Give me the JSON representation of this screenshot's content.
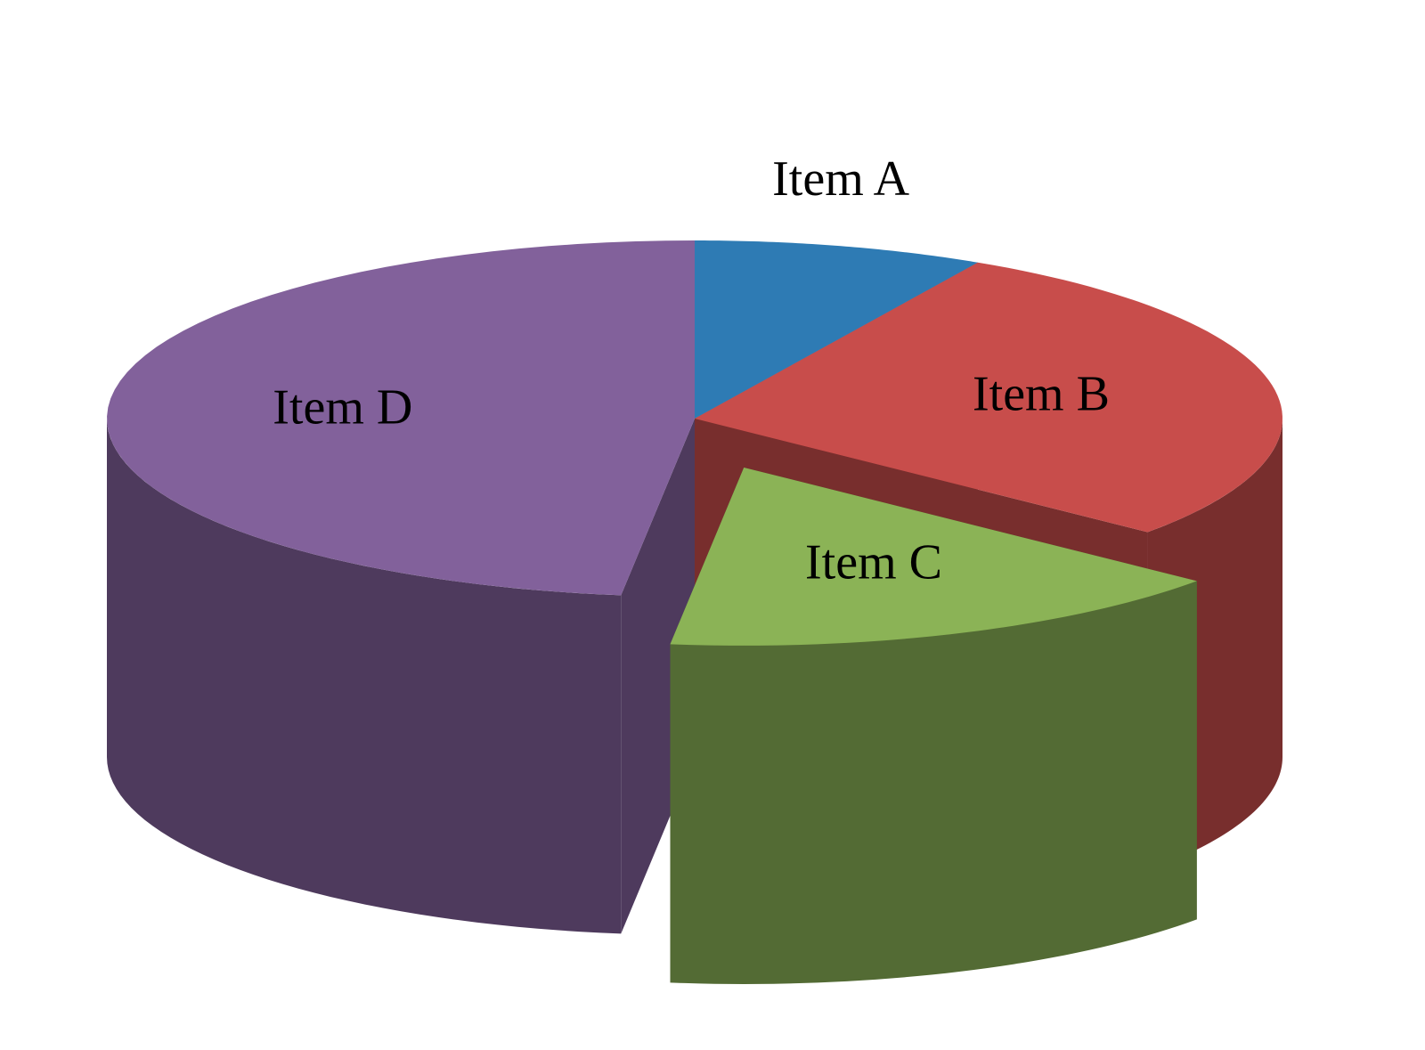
{
  "chart_data": {
    "type": "pie",
    "style": "3d-exploded",
    "title": "",
    "slices": [
      {
        "label": "Item A",
        "value": 8,
        "color": "#2E7BB4",
        "exploded": false
      },
      {
        "label": "Item B",
        "value": 28,
        "color": "#C84D4B",
        "exploded": false
      },
      {
        "label": "Item C",
        "value": 16,
        "color": "#8BB356",
        "exploded": true
      },
      {
        "label": "Item D",
        "value": 48,
        "color": "#82619B",
        "exploded": false
      }
    ],
    "legend": "none"
  }
}
